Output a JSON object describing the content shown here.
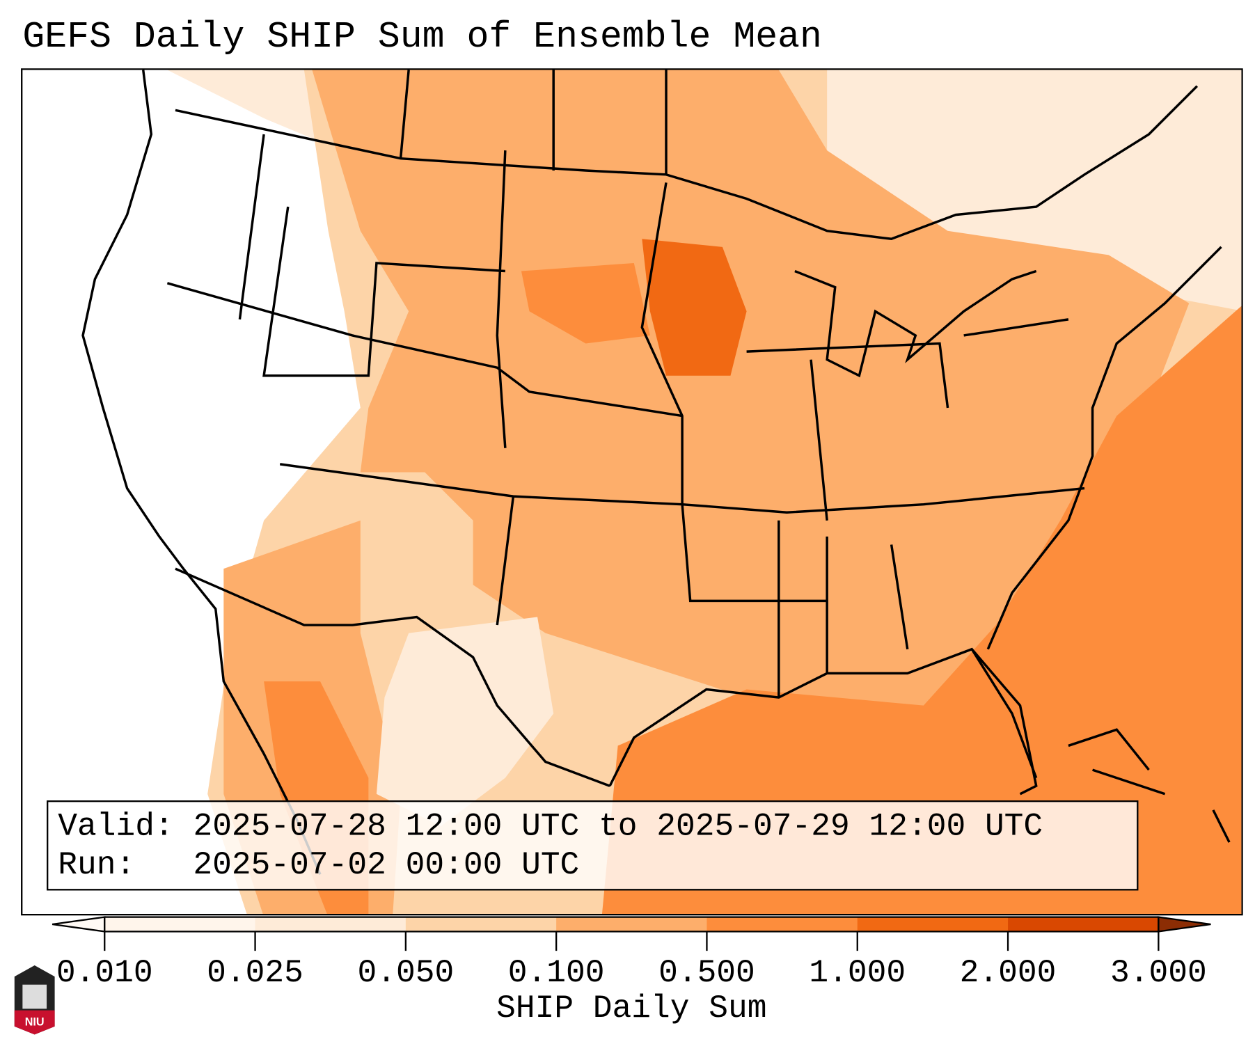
{
  "title": "GEFS Daily SHIP Sum of Ensemble Mean",
  "info": {
    "valid_label": "Valid:",
    "valid_value": "2025-07-28 12:00 UTC to 2025-07-29 12:00 UTC",
    "run_label": "Run:",
    "run_value": "2025-07-02 00:00 UTC"
  },
  "colorbar": {
    "label": "SHIP Daily Sum",
    "ticks": [
      "0.010",
      "0.025",
      "0.050",
      "0.100",
      "0.500",
      "1.000",
      "2.000",
      "3.000"
    ],
    "colors": [
      "#fff5eb",
      "#feebd8",
      "#fdd4a8",
      "#fdae6b",
      "#fd8d3c",
      "#f16913",
      "#d94801",
      "#8c2d04"
    ]
  },
  "logo": {
    "text": "NIU"
  }
}
